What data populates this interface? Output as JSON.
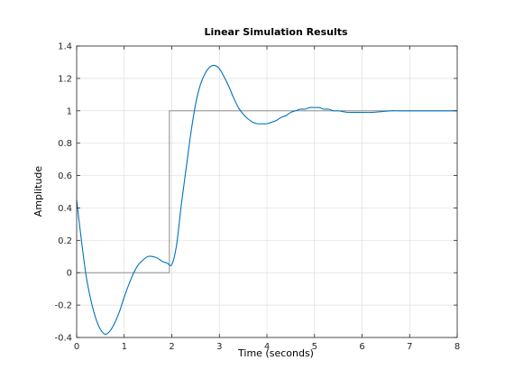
{
  "chart_data": {
    "type": "line",
    "title": "Linear Simulation Results",
    "xlabel": "Time (seconds)",
    "ylabel": "Amplitude",
    "xlim": [
      0,
      8
    ],
    "ylim": [
      -0.4,
      1.4
    ],
    "xticks": [
      0,
      1,
      2,
      3,
      4,
      5,
      6,
      7,
      8
    ],
    "xtick_labels": [
      "0",
      "1",
      "2",
      "3",
      "4",
      "5",
      "6",
      "7",
      "8"
    ],
    "yticks": [
      -0.4,
      -0.2,
      0,
      0.2,
      0.4,
      0.6,
      0.8,
      1,
      1.2,
      1.4
    ],
    "ytick_labels": [
      "-0.4",
      "-0.2",
      "0",
      "0.2",
      "0.4",
      "0.6",
      "0.8",
      "1",
      "1.2",
      "1.4"
    ],
    "grid": true,
    "series": [
      {
        "role": "input",
        "color": "#7f7f7f",
        "x": [
          0,
          1.95,
          1.95,
          8
        ],
        "y": [
          0,
          0,
          1,
          1
        ]
      },
      {
        "role": "response",
        "color": "#0072bd",
        "x": [
          0,
          0.1,
          0.2,
          0.3,
          0.4,
          0.5,
          0.6,
          0.7,
          0.8,
          0.9,
          1.0,
          1.1,
          1.2,
          1.3,
          1.4,
          1.5,
          1.6,
          1.7,
          1.8,
          1.9,
          2.0,
          2.1,
          2.2,
          2.3,
          2.4,
          2.5,
          2.6,
          2.7,
          2.8,
          2.9,
          3.0,
          3.1,
          3.2,
          3.3,
          3.4,
          3.5,
          3.6,
          3.7,
          3.8,
          3.9,
          4.0,
          4.1,
          4.2,
          4.3,
          4.4,
          4.5,
          4.6,
          4.7,
          4.8,
          4.9,
          5.0,
          5.1,
          5.2,
          5.3,
          5.4,
          5.5,
          5.6,
          5.7,
          5.8,
          5.9,
          6.0,
          6.2,
          6.4,
          6.6,
          6.8,
          7.0,
          7.5,
          8.0
        ],
        "y": [
          0.45,
          0.2,
          -0.02,
          -0.17,
          -0.28,
          -0.35,
          -0.38,
          -0.36,
          -0.31,
          -0.24,
          -0.15,
          -0.07,
          0.0,
          0.05,
          0.08,
          0.1,
          0.1,
          0.09,
          0.07,
          0.06,
          0.05,
          0.17,
          0.42,
          0.64,
          0.86,
          1.04,
          1.16,
          1.23,
          1.27,
          1.28,
          1.26,
          1.21,
          1.15,
          1.08,
          1.02,
          0.98,
          0.95,
          0.93,
          0.92,
          0.92,
          0.92,
          0.93,
          0.94,
          0.96,
          0.97,
          0.99,
          1.0,
          1.01,
          1.01,
          1.02,
          1.02,
          1.02,
          1.01,
          1.01,
          1.0,
          1.0,
          0.995,
          0.99,
          0.99,
          0.99,
          0.99,
          0.99,
          0.995,
          1.0,
          1.0,
          1.0,
          1.0,
          1.0
        ]
      }
    ]
  }
}
